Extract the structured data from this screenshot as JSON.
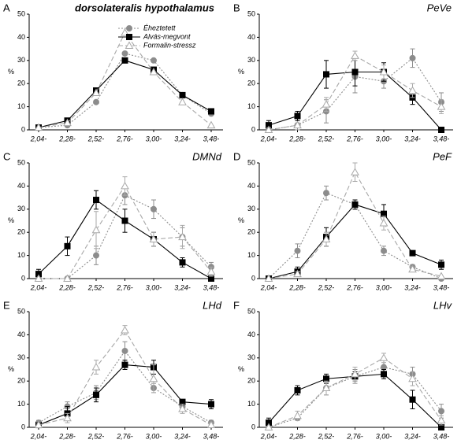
{
  "chart_data": [
    {
      "type": "line",
      "label": "A",
      "title": "dorsolateralis hypothalamus",
      "ylabel": "%",
      "legend": true,
      "categories": [
        "2,04-",
        "2,28-",
        "2,52-",
        "2,76-",
        "3,00-",
        "3,24-",
        "3,48-"
      ],
      "ylim": [
        0,
        50
      ],
      "yticks": [
        0,
        10,
        20,
        30,
        40,
        50
      ],
      "series": [
        {
          "name": "Éheztetett",
          "color": "#8c8c8c",
          "marker": "circle",
          "dash": "dotted",
          "values": [
            1,
            2,
            12,
            33,
            30,
            15,
            7
          ]
        },
        {
          "name": "Alvás-megvont",
          "color": "#000000",
          "marker": "square",
          "dash": "solid",
          "values": [
            1,
            4,
            17,
            30,
            26,
            15,
            8
          ]
        },
        {
          "name": "Formalin-stressz",
          "color": "#a8a8a8",
          "marker": "triangle",
          "dash": "dashed",
          "values": [
            1,
            3,
            16,
            42,
            25,
            12,
            2
          ]
        }
      ]
    },
    {
      "type": "line",
      "label": "B",
      "title": "PeVe",
      "ylabel": "%",
      "legend": false,
      "categories": [
        "2,04-",
        "2,28-",
        "2,52-",
        "2,76-",
        "3,00-",
        "3,24-",
        "3,48-"
      ],
      "ylim": [
        0,
        50
      ],
      "yticks": [
        0,
        10,
        20,
        30,
        40,
        50
      ],
      "series": [
        {
          "color": "#8c8c8c",
          "marker": "circle",
          "dash": "dotted",
          "values": [
            0,
            2,
            8,
            23,
            21,
            31,
            12
          ],
          "errors": [
            1,
            2,
            5,
            7,
            3,
            4,
            4
          ]
        },
        {
          "color": "#000000",
          "marker": "square",
          "dash": "solid",
          "values": [
            2,
            6,
            24,
            25,
            25,
            14,
            0
          ],
          "errors": [
            2,
            2,
            6,
            6,
            4,
            3,
            0
          ]
        },
        {
          "color": "#a8a8a8",
          "marker": "triangle",
          "dash": "dashed",
          "values": [
            0,
            2,
            11,
            32,
            25,
            17,
            10
          ],
          "errors": [
            1,
            1,
            3,
            2,
            3,
            3,
            3
          ]
        }
      ]
    },
    {
      "type": "line",
      "label": "C",
      "title": "DMNd",
      "ylabel": "%",
      "legend": false,
      "categories": [
        "2,04-",
        "2,28-",
        "2,52-",
        "2,76-",
        "3,00-",
        "3,24-",
        "3,48-"
      ],
      "ylim": [
        0,
        50
      ],
      "yticks": [
        0,
        10,
        20,
        30,
        40,
        50
      ],
      "series": [
        {
          "color": "#8c8c8c",
          "marker": "circle",
          "dash": "dotted",
          "values": [
            0,
            0,
            10,
            36,
            30,
            18,
            5
          ],
          "errors": [
            0,
            0,
            4,
            4,
            4,
            4,
            2
          ]
        },
        {
          "color": "#000000",
          "marker": "square",
          "dash": "solid",
          "values": [
            2,
            14,
            34,
            25,
            17,
            7,
            0
          ],
          "errors": [
            2,
            4,
            4,
            5,
            3,
            2,
            0
          ]
        },
        {
          "color": "#a8a8a8",
          "marker": "triangle",
          "dash": "dashed",
          "values": [
            0,
            0,
            21,
            40,
            17,
            18,
            3
          ],
          "errors": [
            0,
            0,
            8,
            4,
            3,
            5,
            2
          ]
        }
      ]
    },
    {
      "type": "line",
      "label": "D",
      "title": "PeF",
      "ylabel": "%",
      "legend": false,
      "categories": [
        "2,04-",
        "2,28-",
        "2,52-",
        "2,76-",
        "3,00-",
        "3,24-",
        "3,48-"
      ],
      "ylim": [
        0,
        50
      ],
      "yticks": [
        0,
        10,
        20,
        30,
        40,
        50
      ],
      "series": [
        {
          "color": "#8c8c8c",
          "marker": "circle",
          "dash": "dotted",
          "values": [
            0,
            12,
            37,
            32,
            12,
            5,
            0
          ],
          "errors": [
            0,
            3,
            3,
            2,
            2,
            1,
            0
          ]
        },
        {
          "color": "#000000",
          "marker": "square",
          "dash": "solid",
          "values": [
            0,
            3,
            18,
            32,
            28,
            11,
            6
          ],
          "errors": [
            0,
            2,
            4,
            2,
            4,
            1,
            2
          ]
        },
        {
          "color": "#a8a8a8",
          "marker": "triangle",
          "dash": "dashed",
          "values": [
            0,
            2,
            17,
            46,
            24,
            4,
            1
          ],
          "errors": [
            0,
            1,
            3,
            4,
            3,
            1,
            0
          ]
        }
      ]
    },
    {
      "type": "line",
      "label": "E",
      "title": "LHd",
      "ylabel": "%",
      "legend": false,
      "categories": [
        "2,04-",
        "2,28-",
        "2,52-",
        "2,76-",
        "3,00-",
        "3,24-",
        "3,48-"
      ],
      "ylim": [
        0,
        50
      ],
      "yticks": [
        0,
        10,
        20,
        30,
        40,
        50
      ],
      "series": [
        {
          "color": "#8c8c8c",
          "marker": "circle",
          "dash": "dotted",
          "values": [
            2,
            9,
            15,
            33,
            17,
            9,
            2
          ],
          "errors": [
            1,
            2,
            3,
            4,
            2,
            2,
            1
          ]
        },
        {
          "color": "#000000",
          "marker": "square",
          "dash": "solid",
          "values": [
            1,
            6,
            14,
            27,
            26,
            11,
            10
          ],
          "errors": [
            1,
            3,
            3,
            2,
            3,
            1,
            2
          ]
        },
        {
          "color": "#a8a8a8",
          "marker": "triangle",
          "dash": "dashed",
          "values": [
            1,
            4,
            26,
            42,
            21,
            8,
            1
          ],
          "errors": [
            1,
            2,
            3,
            2,
            6,
            2,
            1
          ]
        }
      ]
    },
    {
      "type": "line",
      "label": "F",
      "title": "LHv",
      "ylabel": "%",
      "legend": false,
      "categories": [
        "2,04-",
        "2,28-",
        "2,52-",
        "2,76-",
        "3,00-",
        "3,24-",
        "3,48-"
      ],
      "ylim": [
        0,
        50
      ],
      "yticks": [
        0,
        10,
        20,
        30,
        40,
        50
      ],
      "series": [
        {
          "color": "#8c8c8c",
          "marker": "circle",
          "dash": "dotted",
          "values": [
            0,
            4,
            17,
            22,
            26,
            23,
            7
          ],
          "errors": [
            1,
            1,
            3,
            3,
            3,
            3,
            3
          ]
        },
        {
          "color": "#000000",
          "marker": "square",
          "dash": "solid",
          "values": [
            2,
            16,
            21,
            22,
            23,
            12,
            0
          ],
          "errors": [
            2,
            2,
            2,
            2,
            2,
            4,
            1
          ]
        },
        {
          "color": "#a8a8a8",
          "marker": "triangle",
          "dash": "dashed",
          "values": [
            0,
            5,
            17,
            23,
            30,
            21,
            3
          ],
          "errors": [
            0,
            2,
            3,
            3,
            2,
            3,
            2
          ]
        }
      ]
    }
  ]
}
